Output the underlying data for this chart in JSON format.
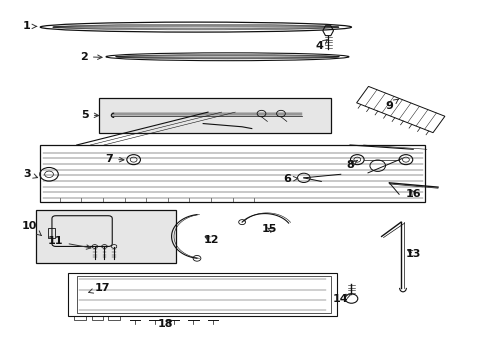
{
  "bg_color": "#ffffff",
  "line_color": "#111111",
  "box_fill": "#e8e8e8",
  "labels_arrows": [
    [
      1,
      0.052,
      0.93,
      0.08,
      0.93
    ],
    [
      2,
      0.17,
      0.845,
      0.215,
      0.843
    ],
    [
      3,
      0.052,
      0.518,
      0.082,
      0.503
    ],
    [
      4,
      0.655,
      0.875,
      0.672,
      0.895
    ],
    [
      5,
      0.172,
      0.682,
      0.208,
      0.68
    ],
    [
      6,
      0.588,
      0.502,
      0.612,
      0.505
    ],
    [
      7,
      0.222,
      0.558,
      0.26,
      0.556
    ],
    [
      8,
      0.718,
      0.542,
      0.733,
      0.556
    ],
    [
      9,
      0.798,
      0.708,
      0.818,
      0.728
    ],
    [
      10,
      0.058,
      0.372,
      0.088,
      0.338
    ],
    [
      11,
      0.112,
      0.328,
      0.192,
      0.308
    ],
    [
      12,
      0.432,
      0.332,
      0.412,
      0.346
    ],
    [
      13,
      0.848,
      0.292,
      0.83,
      0.312
    ],
    [
      14,
      0.698,
      0.168,
      0.72,
      0.18
    ],
    [
      15,
      0.552,
      0.362,
      0.542,
      0.37
    ],
    [
      16,
      0.848,
      0.462,
      0.838,
      0.48
    ],
    [
      17,
      0.208,
      0.198,
      0.172,
      0.182
    ],
    [
      18,
      0.338,
      0.098,
      0.358,
      0.112
    ]
  ]
}
